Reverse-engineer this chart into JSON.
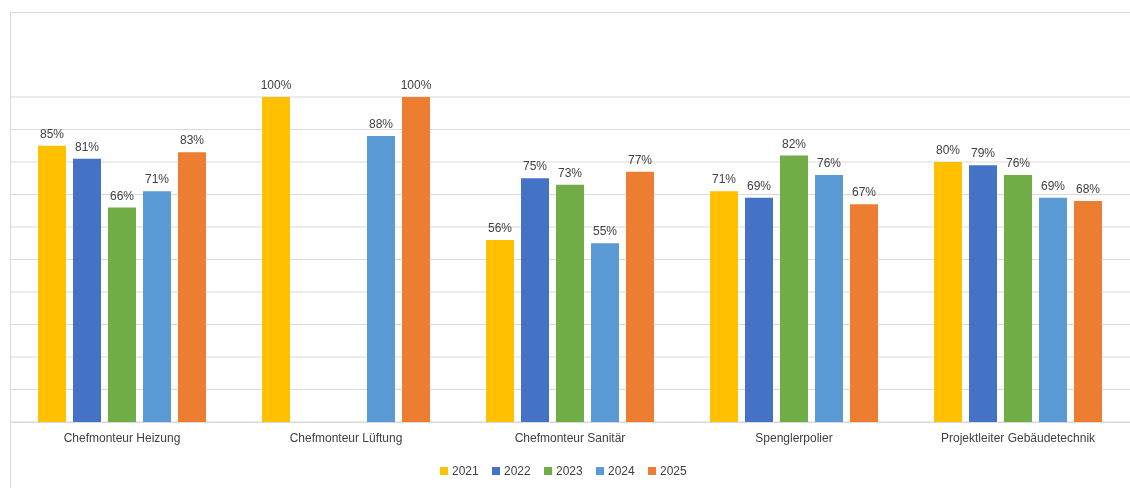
{
  "chart_data": {
    "type": "bar",
    "categories": [
      "Chefmonteur Heizung",
      "Chefmonteur Lüftung",
      "Chefmonteur Sanitär",
      "Spenglerpolier",
      "Projektleiter Gebäudetechnik"
    ],
    "series": [
      {
        "name": "2021",
        "color": "#ffc000",
        "values": [
          85,
          100,
          56,
          71,
          80
        ],
        "value_labels": [
          "85%",
          "100%",
          "56%",
          "71%",
          "80%"
        ]
      },
      {
        "name": "2022",
        "color": "#4472c4",
        "values": [
          81,
          null,
          75,
          69,
          79
        ],
        "value_labels": [
          "81%",
          null,
          "75%",
          "69%",
          "79%"
        ]
      },
      {
        "name": "2023",
        "color": "#70ad47",
        "values": [
          66,
          null,
          73,
          82,
          76
        ],
        "value_labels": [
          "66%",
          null,
          "73%",
          "82%",
          "76%"
        ]
      },
      {
        "name": "2024",
        "color": "#5b9bd5",
        "values": [
          71,
          88,
          55,
          76,
          69
        ],
        "value_labels": [
          "71%",
          "88%",
          "55%",
          "76%",
          "69%"
        ]
      },
      {
        "name": "2025",
        "color": "#ed7d31",
        "values": [
          83,
          100,
          77,
          67,
          68
        ],
        "value_labels": [
          "83%",
          "100%",
          "77%",
          "67%",
          "68%"
        ]
      }
    ],
    "ylim": [
      0,
      100
    ],
    "yticks": [
      {
        "value": 0,
        "label": null
      },
      {
        "value": 10,
        "label": null
      },
      {
        "value": 20,
        "label": null
      },
      {
        "value": 30,
        "label": null
      },
      {
        "value": 40,
        "label": null
      },
      {
        "value": 50,
        "label": null
      },
      {
        "value": 60,
        "label": null
      },
      {
        "value": 70,
        "label": null
      },
      {
        "value": 80,
        "label": null
      },
      {
        "value": 90,
        "label": null
      },
      {
        "value": 100,
        "label": null
      }
    ],
    "grid": "y",
    "legend": "bottom",
    "tick_labels": "x"
  }
}
